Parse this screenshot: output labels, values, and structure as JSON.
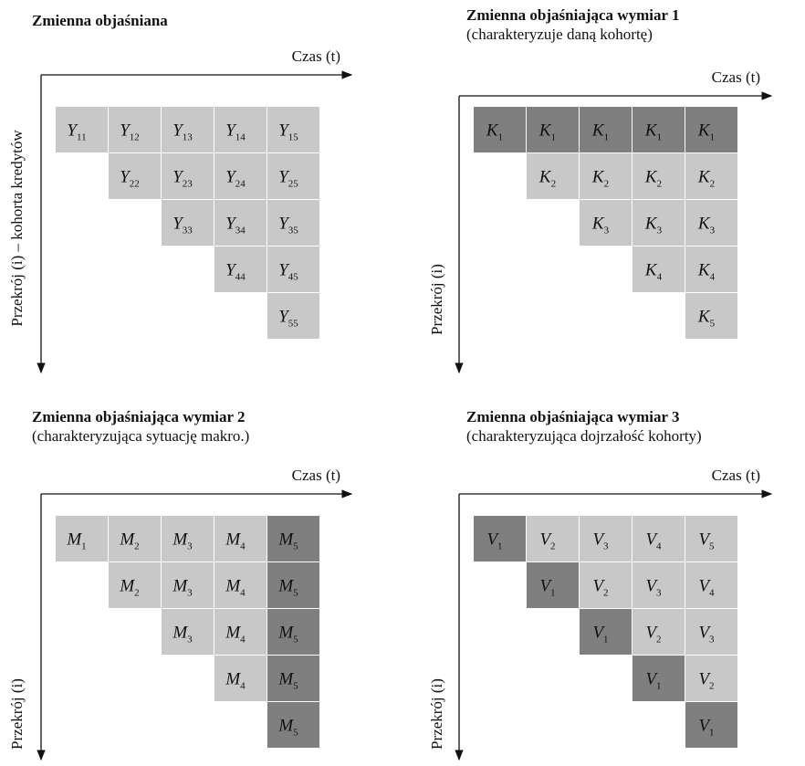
{
  "panels": [
    {
      "title": "Zmienna objaśniana",
      "x_label": "Czas (t)",
      "y_label": "Przekrój (i) – kohorta kredytów",
      "rows": [
        [
          {
            "symbol": "Y",
            "index": "11",
            "shade": "light"
          },
          {
            "symbol": "Y",
            "index": "12",
            "shade": "light"
          },
          {
            "symbol": "Y",
            "index": "13",
            "shade": "light"
          },
          {
            "symbol": "Y",
            "index": "14",
            "shade": "light"
          },
          {
            "symbol": "Y",
            "index": "15",
            "shade": "light"
          }
        ],
        [
          {
            "symbol": "Y",
            "index": "22",
            "shade": "light"
          },
          {
            "symbol": "Y",
            "index": "23",
            "shade": "light"
          },
          {
            "symbol": "Y",
            "index": "24",
            "shade": "light"
          },
          {
            "symbol": "Y",
            "index": "25",
            "shade": "light"
          }
        ],
        [
          {
            "symbol": "Y",
            "index": "33",
            "shade": "light"
          },
          {
            "symbol": "Y",
            "index": "34",
            "shade": "light"
          },
          {
            "symbol": "Y",
            "index": "35",
            "shade": "light"
          }
        ],
        [
          {
            "symbol": "Y",
            "index": "44",
            "shade": "light"
          },
          {
            "symbol": "Y",
            "index": "45",
            "shade": "light"
          }
        ],
        [
          {
            "symbol": "Y",
            "index": "55",
            "shade": "light"
          }
        ]
      ]
    },
    {
      "title": "Zmienna objaśniająca wymiar 1",
      "subtitle": "(charakteryzuje daną kohortę)",
      "x_label": "Czas (t)",
      "y_label": "Przekrój (i)",
      "rows": [
        [
          {
            "symbol": "K",
            "index": "1",
            "shade": "dark"
          },
          {
            "symbol": "K",
            "index": "1",
            "shade": "dark"
          },
          {
            "symbol": "K",
            "index": "1",
            "shade": "dark"
          },
          {
            "symbol": "K",
            "index": "1",
            "shade": "dark"
          },
          {
            "symbol": "K",
            "index": "1",
            "shade": "dark"
          }
        ],
        [
          {
            "symbol": "K",
            "index": "2",
            "shade": "light"
          },
          {
            "symbol": "K",
            "index": "2",
            "shade": "light"
          },
          {
            "symbol": "K",
            "index": "2",
            "shade": "light"
          },
          {
            "symbol": "K",
            "index": "2",
            "shade": "light"
          }
        ],
        [
          {
            "symbol": "K",
            "index": "3",
            "shade": "light"
          },
          {
            "symbol": "K",
            "index": "3",
            "shade": "light"
          },
          {
            "symbol": "K",
            "index": "3",
            "shade": "light"
          }
        ],
        [
          {
            "symbol": "K",
            "index": "4",
            "shade": "light"
          },
          {
            "symbol": "K",
            "index": "4",
            "shade": "light"
          }
        ],
        [
          {
            "symbol": "K",
            "index": "5",
            "shade": "light"
          }
        ]
      ]
    },
    {
      "title": "Zmienna objaśniająca wymiar 2",
      "subtitle": "(charakteryzująca sytuację makro.)",
      "x_label": "Czas (t)",
      "y_label": "Przekrój (i)",
      "rows": [
        [
          {
            "symbol": "M",
            "index": "1",
            "shade": "light"
          },
          {
            "symbol": "M",
            "index": "2",
            "shade": "light"
          },
          {
            "symbol": "M",
            "index": "3",
            "shade": "light"
          },
          {
            "symbol": "M",
            "index": "4",
            "shade": "light"
          },
          {
            "symbol": "M",
            "index": "5",
            "shade": "dark"
          }
        ],
        [
          {
            "symbol": "M",
            "index": "2",
            "shade": "light"
          },
          {
            "symbol": "M",
            "index": "3",
            "shade": "light"
          },
          {
            "symbol": "M",
            "index": "4",
            "shade": "light"
          },
          {
            "symbol": "M",
            "index": "5",
            "shade": "dark"
          }
        ],
        [
          {
            "symbol": "M",
            "index": "3",
            "shade": "light"
          },
          {
            "symbol": "M",
            "index": "4",
            "shade": "light"
          },
          {
            "symbol": "M",
            "index": "5",
            "shade": "dark"
          }
        ],
        [
          {
            "symbol": "M",
            "index": "4",
            "shade": "light"
          },
          {
            "symbol": "M",
            "index": "5",
            "shade": "dark"
          }
        ],
        [
          {
            "symbol": "M",
            "index": "5",
            "shade": "dark"
          }
        ]
      ]
    },
    {
      "title": "Zmienna objaśniająca wymiar 3",
      "subtitle": "(charakteryzująca dojrzałość kohorty)",
      "x_label": "Czas (t)",
      "y_label": "Przekrój (i)",
      "rows": [
        [
          {
            "symbol": "V",
            "index": "1",
            "shade": "dark"
          },
          {
            "symbol": "V",
            "index": "2",
            "shade": "light"
          },
          {
            "symbol": "V",
            "index": "3",
            "shade": "light"
          },
          {
            "symbol": "V",
            "index": "4",
            "shade": "light"
          },
          {
            "symbol": "V",
            "index": "5",
            "shade": "light"
          }
        ],
        [
          {
            "symbol": "V",
            "index": "1",
            "shade": "dark"
          },
          {
            "symbol": "V",
            "index": "2",
            "shade": "light"
          },
          {
            "symbol": "V",
            "index": "3",
            "shade": "light"
          },
          {
            "symbol": "V",
            "index": "4",
            "shade": "light"
          }
        ],
        [
          {
            "symbol": "V",
            "index": "1",
            "shade": "dark"
          },
          {
            "symbol": "V",
            "index": "2",
            "shade": "light"
          },
          {
            "symbol": "V",
            "index": "3",
            "shade": "light"
          }
        ],
        [
          {
            "symbol": "V",
            "index": "1",
            "shade": "dark"
          },
          {
            "symbol": "V",
            "index": "2",
            "shade": "light"
          }
        ],
        [
          {
            "symbol": "V",
            "index": "1",
            "shade": "dark"
          }
        ]
      ]
    }
  ]
}
